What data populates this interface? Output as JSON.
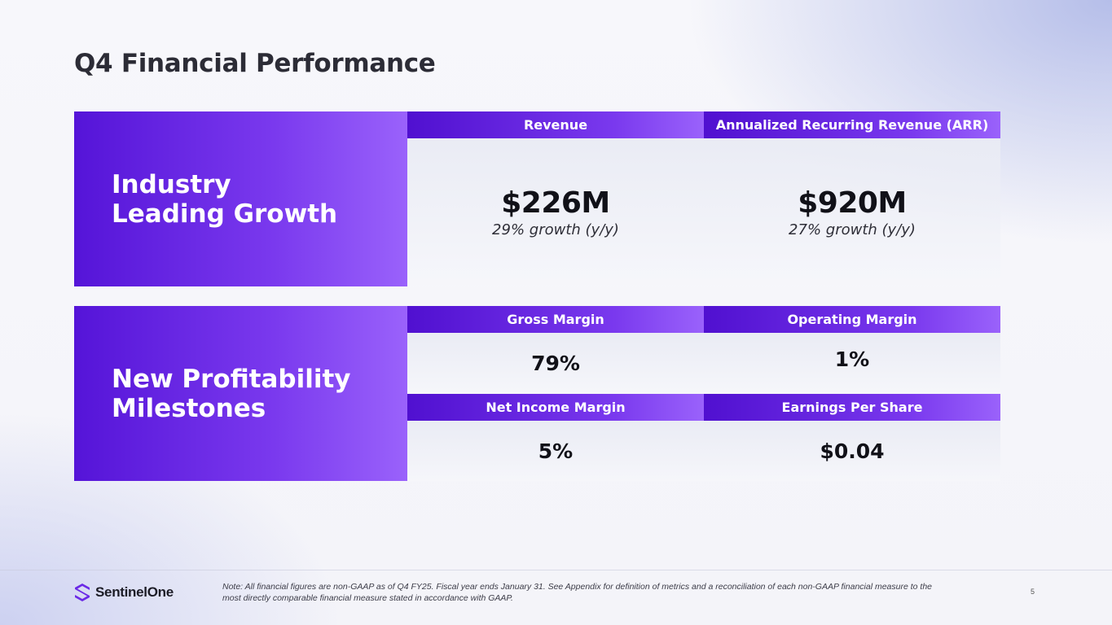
{
  "slide": {
    "title": "Q4 Financial Performance",
    "page_number": "5"
  },
  "growth": {
    "heading_line1": "Industry",
    "heading_line2": "Leading Growth",
    "revenue": {
      "label": "Revenue",
      "value": "$226M",
      "growth": "29% growth (y/y)"
    },
    "arr": {
      "label": "Annualized Recurring Revenue (ARR)",
      "value": "$920M",
      "growth": "27% growth (y/y)"
    }
  },
  "profitability": {
    "heading_line1": "New Profitability",
    "heading_line2": "Milestones",
    "gross_margin": {
      "label": "Gross Margin",
      "value": "79%"
    },
    "operating_margin": {
      "label": "Operating Margin",
      "value": "1%"
    },
    "net_income_margin": {
      "label": "Net Income Margin",
      "value": "5%"
    },
    "eps": {
      "label": "Earnings Per Share",
      "value": "$0.04"
    }
  },
  "footer": {
    "brand": "SentinelOne",
    "brand_icon": "sentinelone-logo-icon",
    "note_line1": "Note: All financial figures are non-GAAP as of Q4 FY25. Fiscal year ends January 31. See Appendix for definition of metrics and a reconciliation of each non-GAAP financial measure to the",
    "note_line2": "most directly comparable financial measure stated in accordance with GAAP."
  },
  "colors": {
    "accent_dark": "#5514d8",
    "accent_light": "#9a62fb",
    "title_text": "#2c2c36"
  }
}
